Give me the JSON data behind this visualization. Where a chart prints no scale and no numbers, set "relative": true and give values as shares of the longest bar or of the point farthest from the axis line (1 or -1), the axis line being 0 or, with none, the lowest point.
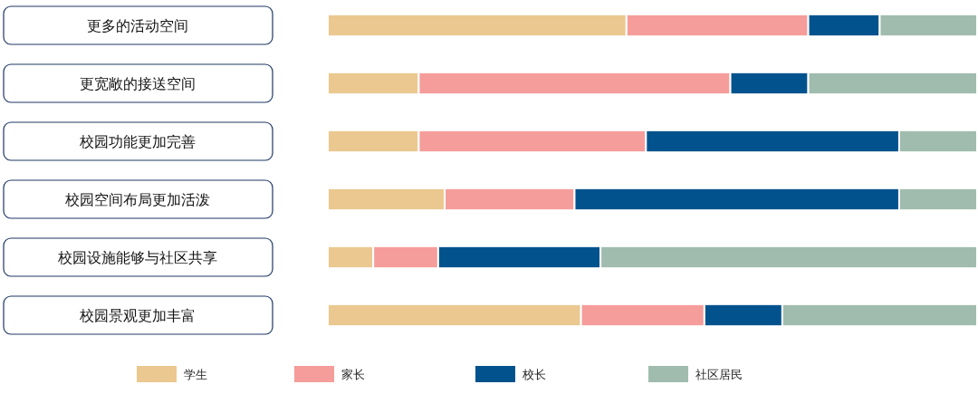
{
  "chart_data": {
    "type": "bar",
    "orientation": "horizontal",
    "stacked": true,
    "relative": true,
    "legend": "bottom",
    "categories": [
      "更多的活动空间",
      "更宽敞的接送空间",
      "校园功能更加完善",
      "校园空间布局更加活泼",
      "校园设施能够与社区共享",
      "校园景观更加丰富"
    ],
    "series": [
      {
        "name": "学生",
        "color": "#ebc88f",
        "values": [
          0.46,
          0.14,
          0.14,
          0.18,
          0.07,
          0.39
        ]
      },
      {
        "name": "家长",
        "color": "#f59d9b",
        "values": [
          0.28,
          0.48,
          0.35,
          0.2,
          0.1,
          0.19
        ]
      },
      {
        "name": "校长",
        "color": "#02538d",
        "values": [
          0.11,
          0.12,
          0.39,
          0.5,
          0.25,
          0.12
        ]
      },
      {
        "name": "社区居民",
        "color": "#a0bcae",
        "values": [
          0.15,
          0.26,
          0.12,
          0.12,
          0.58,
          0.3
        ]
      }
    ]
  }
}
